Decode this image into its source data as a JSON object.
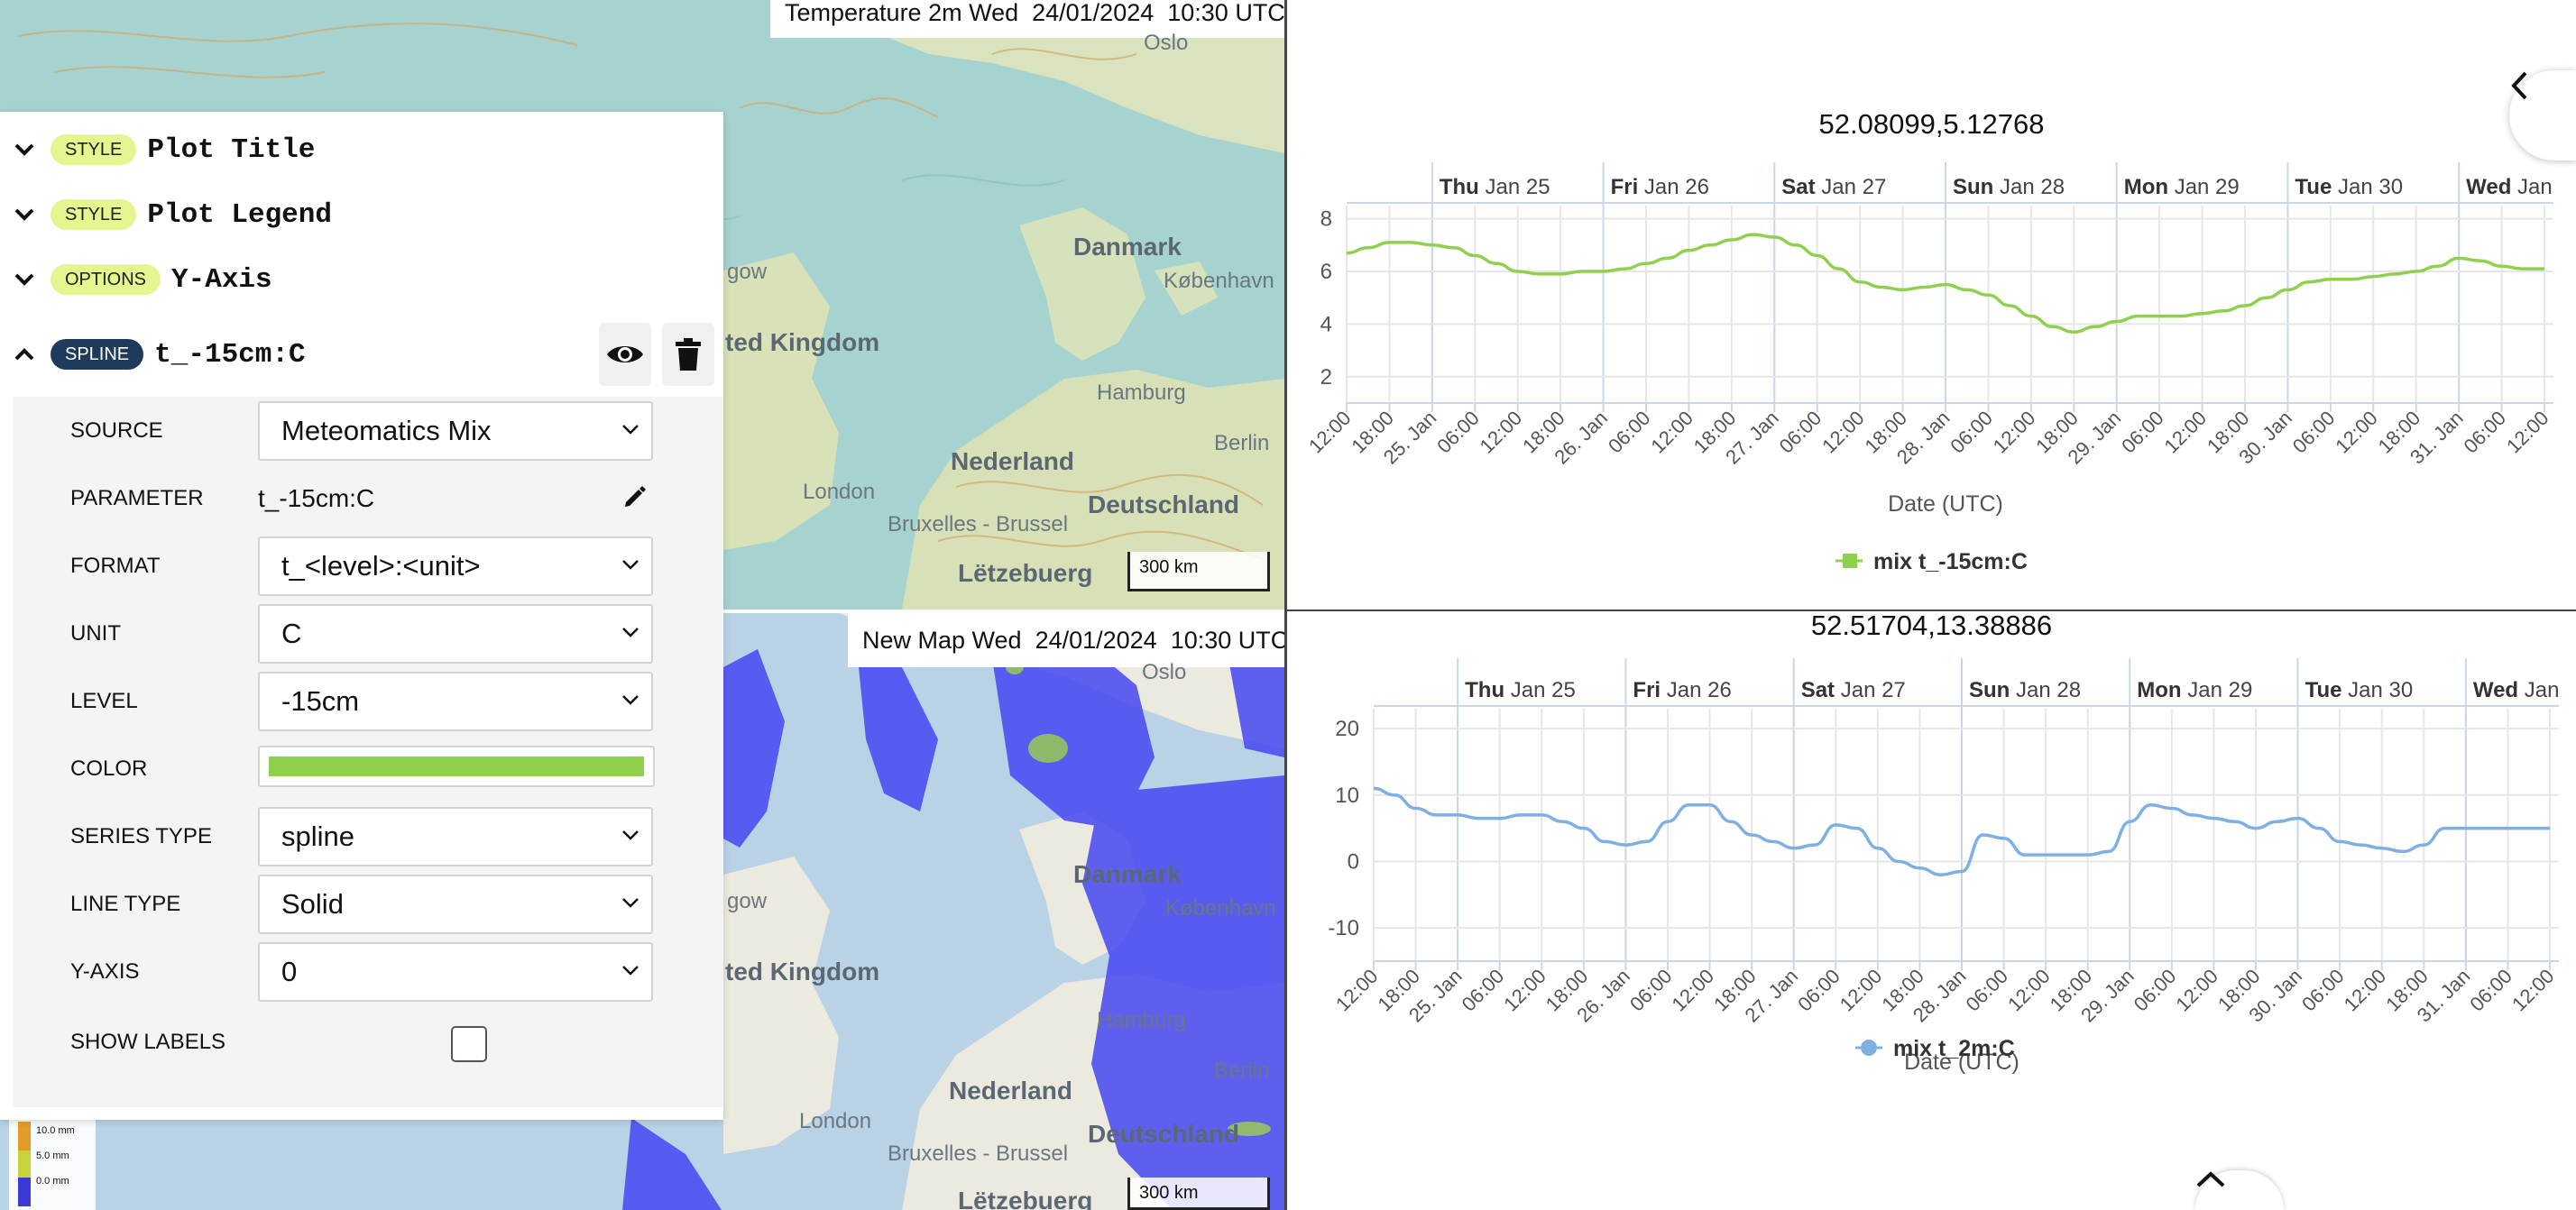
{
  "maps": {
    "top": {
      "header": "Temperature 2m Wed  24/01/2024  10:30 UTC",
      "scale": "300 km",
      "labels": {
        "oslo": "Oslo",
        "danmark": "Danmark",
        "kobenhavn": "København",
        "united_kingdom": "ted Kingdom",
        "glasgow": "gow",
        "hamburg": "Hamburg",
        "berlin": "Berlin",
        "nederland": "Nederland",
        "london": "London",
        "deutschland": "Deutschland",
        "bruxelles": "Bruxelles - Brussel",
        "letzebuerg": "Lëtzebuerg"
      }
    },
    "bottom": {
      "header": "New Map Wed  24/01/2024  10:30 UTC",
      "scale": "300 km",
      "legend": [
        "10.0 mm",
        "5.0 mm",
        "0.0 mm"
      ],
      "labels": {
        "oslo": "Oslo",
        "danmark": "Danmark",
        "kobenhavn": "København",
        "united_kingdom": "ted Kingdom",
        "glasgow": "gow",
        "hamburg": "Hamburg",
        "berlin": "Berlin",
        "nederland": "Nederland",
        "london": "London",
        "deutschland": "Deutschland",
        "bruxelles": "Bruxelles - Brussel",
        "letzebuerg": "Lëtzebuerg"
      }
    }
  },
  "panel": {
    "sections": [
      {
        "badge": "STYLE",
        "title": "Plot Title"
      },
      {
        "badge": "STYLE",
        "title": "Plot Legend"
      },
      {
        "badge": "OPTIONS",
        "title": "Y-Axis"
      },
      {
        "badge": "SPLINE",
        "title": "t_-15cm:C"
      }
    ],
    "props": {
      "source": {
        "label": "SOURCE",
        "value": "Meteomatics Mix"
      },
      "parameter": {
        "label": "PARAMETER",
        "value": "t_-15cm:C"
      },
      "format": {
        "label": "FORMAT",
        "value": "t_<level>:<unit>"
      },
      "unit": {
        "label": "UNIT",
        "value": "C"
      },
      "level": {
        "label": "LEVEL",
        "value": "-15cm"
      },
      "color": {
        "label": "COLOR",
        "value": "#8fd14f"
      },
      "series_type": {
        "label": "SERIES TYPE",
        "value": "spline"
      },
      "line_type": {
        "label": "LINE TYPE",
        "value": "Solid"
      },
      "y_axis": {
        "label": "Y-AXIS",
        "value": "0"
      },
      "show_labels": {
        "label": "SHOW LABELS",
        "checked": false
      }
    }
  },
  "chart_data": [
    {
      "type": "line",
      "title": "52.08099,5.12768",
      "xlabel": "Date (UTC)",
      "ylabel": "",
      "ylim": [
        1,
        8.5
      ],
      "yticks": [
        2,
        4,
        6,
        8
      ],
      "grid": true,
      "legend": "bottom-center",
      "x_range": [
        "2024-01-24T12:00",
        "2024-01-31T12:00"
      ],
      "top_labels": [
        {
          "day": "Thu",
          "date": "Jan 25"
        },
        {
          "day": "Fri",
          "date": "Jan 26"
        },
        {
          "day": "Sat",
          "date": "Jan 27"
        },
        {
          "day": "Sun",
          "date": "Jan 28"
        },
        {
          "day": "Mon",
          "date": "Jan 29"
        },
        {
          "day": "Tue",
          "date": "Jan 30"
        },
        {
          "day": "Wed",
          "date": "Jan"
        }
      ],
      "x_tick_labels": [
        "12:00",
        "18:00",
        "25. Jan",
        "06:00",
        "12:00",
        "18:00",
        "26. Jan",
        "06:00",
        "12:00",
        "18:00",
        "27. Jan",
        "06:00",
        "12:00",
        "18:00",
        "28. Jan",
        "06:00",
        "12:00",
        "18:00",
        "29. Jan",
        "06:00",
        "12:00",
        "18:00",
        "30. Jan",
        "06:00",
        "12:00",
        "18:00",
        "31. Jan",
        "06:00",
        "12:00"
      ],
      "series": [
        {
          "name": "mix t_-15cm:C",
          "color": "#8fd14f",
          "x": [
            "2024-01-24T12:00",
            "2024-01-24T15:00",
            "2024-01-24T18:00",
            "2024-01-24T21:00",
            "2024-01-25T00:00",
            "2024-01-25T03:00",
            "2024-01-25T06:00",
            "2024-01-25T09:00",
            "2024-01-25T12:00",
            "2024-01-25T15:00",
            "2024-01-25T18:00",
            "2024-01-25T21:00",
            "2024-01-26T00:00",
            "2024-01-26T03:00",
            "2024-01-26T06:00",
            "2024-01-26T09:00",
            "2024-01-26T12:00",
            "2024-01-26T15:00",
            "2024-01-26T18:00",
            "2024-01-26T21:00",
            "2024-01-27T00:00",
            "2024-01-27T03:00",
            "2024-01-27T06:00",
            "2024-01-27T09:00",
            "2024-01-27T12:00",
            "2024-01-27T15:00",
            "2024-01-27T18:00",
            "2024-01-27T21:00",
            "2024-01-28T00:00",
            "2024-01-28T03:00",
            "2024-01-28T06:00",
            "2024-01-28T09:00",
            "2024-01-28T12:00",
            "2024-01-28T15:00",
            "2024-01-28T18:00",
            "2024-01-28T21:00",
            "2024-01-29T00:00",
            "2024-01-29T03:00",
            "2024-01-29T06:00",
            "2024-01-29T09:00",
            "2024-01-29T12:00",
            "2024-01-29T15:00",
            "2024-01-29T18:00",
            "2024-01-29T21:00",
            "2024-01-30T00:00",
            "2024-01-30T03:00",
            "2024-01-30T06:00",
            "2024-01-30T09:00",
            "2024-01-30T12:00",
            "2024-01-30T15:00",
            "2024-01-30T18:00",
            "2024-01-30T21:00",
            "2024-01-31T00:00",
            "2024-01-31T03:00",
            "2024-01-31T06:00",
            "2024-01-31T09:00",
            "2024-01-31T12:00"
          ],
          "values": [
            6.7,
            6.9,
            7.1,
            7.1,
            7.0,
            6.9,
            6.6,
            6.3,
            6.0,
            5.9,
            5.9,
            6.0,
            6.0,
            6.1,
            6.3,
            6.5,
            6.8,
            7.0,
            7.2,
            7.4,
            7.3,
            7.0,
            6.6,
            6.1,
            5.6,
            5.4,
            5.3,
            5.4,
            5.5,
            5.3,
            5.1,
            4.7,
            4.3,
            3.9,
            3.7,
            3.9,
            4.1,
            4.3,
            4.3,
            4.3,
            4.4,
            4.5,
            4.7,
            5.0,
            5.3,
            5.6,
            5.7,
            5.7,
            5.8,
            5.9,
            6.0,
            6.2,
            6.5,
            6.4,
            6.2,
            6.1,
            6.1
          ]
        }
      ]
    },
    {
      "type": "line",
      "title": "52.51704,13.38886",
      "xlabel": "Date (UTC)",
      "ylabel": "",
      "ylim": [
        -15,
        23
      ],
      "yticks": [
        -10,
        0,
        10,
        20
      ],
      "grid": true,
      "legend": "bottom-center",
      "x_range": [
        "2024-01-24T12:00",
        "2024-01-31T12:00"
      ],
      "top_labels": [
        {
          "day": "Thu",
          "date": "Jan 25"
        },
        {
          "day": "Fri",
          "date": "Jan 26"
        },
        {
          "day": "Sat",
          "date": "Jan 27"
        },
        {
          "day": "Sun",
          "date": "Jan 28"
        },
        {
          "day": "Mon",
          "date": "Jan 29"
        },
        {
          "day": "Tue",
          "date": "Jan 30"
        },
        {
          "day": "Wed",
          "date": "Jan"
        }
      ],
      "x_tick_labels": [
        "12:00",
        "18:00",
        "25. Jan",
        "06:00",
        "12:00",
        "18:00",
        "26. Jan",
        "06:00",
        "12:00",
        "18:00",
        "27. Jan",
        "06:00",
        "12:00",
        "18:00",
        "28. Jan",
        "06:00",
        "12:00",
        "18:00",
        "29. Jan",
        "06:00",
        "12:00",
        "18:00",
        "30. Jan",
        "06:00",
        "12:00",
        "18:00",
        "31. Jan",
        "06:00",
        "12:00"
      ],
      "series": [
        {
          "name": "mix t_2m:C",
          "color": "#7eb0e3",
          "x": [
            "2024-01-24T12:00",
            "2024-01-24T15:00",
            "2024-01-24T18:00",
            "2024-01-24T21:00",
            "2024-01-25T00:00",
            "2024-01-25T03:00",
            "2024-01-25T06:00",
            "2024-01-25T09:00",
            "2024-01-25T12:00",
            "2024-01-25T15:00",
            "2024-01-25T18:00",
            "2024-01-25T21:00",
            "2024-01-26T00:00",
            "2024-01-26T03:00",
            "2024-01-26T06:00",
            "2024-01-26T09:00",
            "2024-01-26T12:00",
            "2024-01-26T15:00",
            "2024-01-26T18:00",
            "2024-01-26T21:00",
            "2024-01-27T00:00",
            "2024-01-27T03:00",
            "2024-01-27T06:00",
            "2024-01-27T09:00",
            "2024-01-27T12:00",
            "2024-01-27T15:00",
            "2024-01-27T18:00",
            "2024-01-27T21:00",
            "2024-01-28T00:00",
            "2024-01-28T03:00",
            "2024-01-28T06:00",
            "2024-01-28T09:00",
            "2024-01-28T12:00",
            "2024-01-28T15:00",
            "2024-01-28T18:00",
            "2024-01-28T21:00",
            "2024-01-29T00:00",
            "2024-01-29T03:00",
            "2024-01-29T06:00",
            "2024-01-29T09:00",
            "2024-01-29T12:00",
            "2024-01-29T15:00",
            "2024-01-29T18:00",
            "2024-01-29T21:00",
            "2024-01-30T00:00",
            "2024-01-30T03:00",
            "2024-01-30T06:00",
            "2024-01-30T09:00",
            "2024-01-30T12:00",
            "2024-01-30T15:00",
            "2024-01-30T18:00",
            "2024-01-30T21:00",
            "2024-01-31T00:00",
            "2024-01-31T03:00",
            "2024-01-31T06:00",
            "2024-01-31T09:00",
            "2024-01-31T12:00"
          ],
          "values": [
            11,
            10,
            8,
            7,
            7,
            6.5,
            6.5,
            7,
            7,
            6,
            5,
            3,
            2.5,
            3,
            6,
            8.5,
            8.5,
            6,
            4,
            3,
            2,
            2.5,
            5.5,
            5,
            2,
            0,
            -1,
            -2,
            -1.5,
            4,
            3.5,
            1,
            1,
            1,
            1,
            1.5,
            6,
            8.5,
            8,
            7,
            6.5,
            6,
            5,
            6,
            6.5,
            5,
            3,
            2.5,
            2,
            1.5,
            2.5,
            5,
            5,
            5,
            5,
            5,
            5
          ]
        }
      ]
    }
  ]
}
